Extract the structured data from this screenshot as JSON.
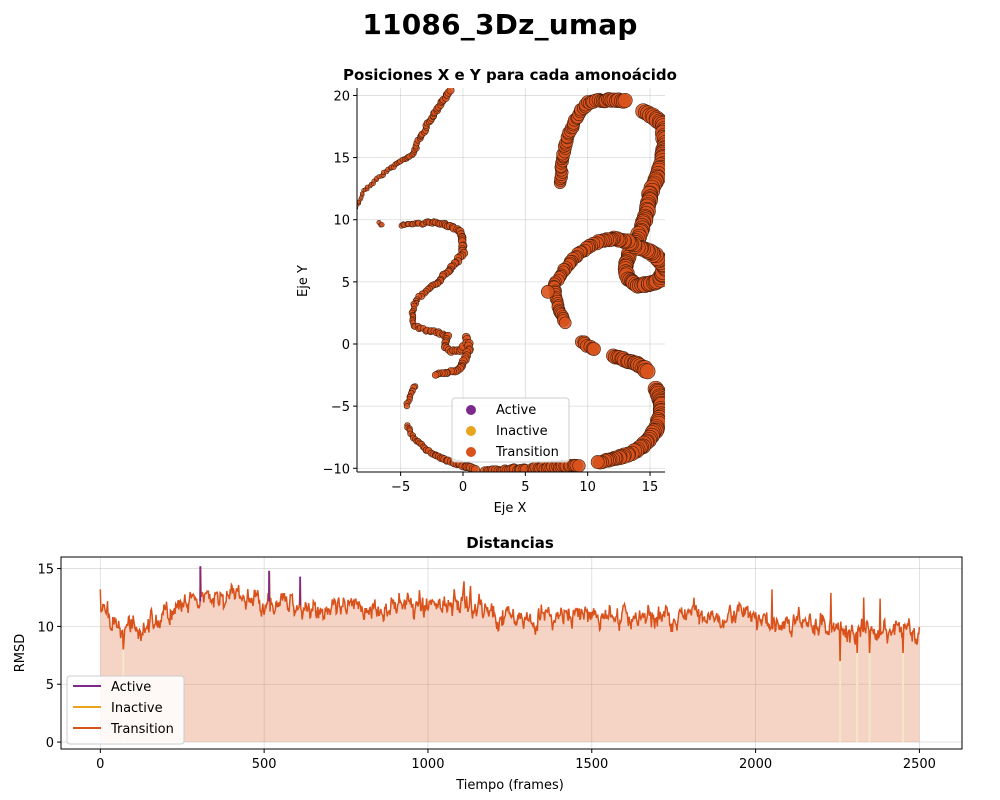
{
  "suptitle": "11086_3Dz_umap",
  "colors": {
    "Active": "#7b2a8b",
    "Inactive": "#e8a51d",
    "Transition": "#d9521b"
  },
  "chart_data": [
    {
      "type": "scatter",
      "title": "Posiciones X e Y para cada amonoácido",
      "xlabel": "Eje X",
      "ylabel": "Eje Y",
      "xlim": [
        -8.5,
        16.2
      ],
      "ylim": [
        -10.3,
        20.6
      ],
      "xticks": [
        -5,
        0,
        5,
        10,
        15
      ],
      "yticks": [
        -10,
        -5,
        0,
        5,
        10,
        15,
        20
      ],
      "grid": true,
      "legend": {
        "placement": "lower-center",
        "entries": [
          "Active",
          "Inactive",
          "Transition"
        ]
      },
      "series": [
        {
          "name": "Active",
          "points": []
        },
        {
          "name": "Inactive",
          "points": []
        },
        {
          "name": "Transition",
          "paths": [
            [
              [
                -8.5,
                11.0
              ],
              [
                -8.0,
                12.3
              ],
              [
                -7.0,
                13.2
              ],
              [
                -6.0,
                14.0
              ],
              [
                -5.0,
                14.7
              ],
              [
                -4.0,
                15.3
              ],
              [
                -3.5,
                16.5
              ],
              [
                -2.8,
                17.7
              ],
              [
                -2.0,
                19.0
              ],
              [
                -1.0,
                20.4
              ]
            ],
            [
              [
                -6.8,
                9.7
              ],
              [
                -6.5,
                9.6
              ]
            ],
            [
              [
                -5.0,
                9.6
              ],
              [
                -3.5,
                9.7
              ],
              [
                -2.5,
                9.8
              ],
              [
                -1.5,
                9.6
              ],
              [
                -0.5,
                9.3
              ],
              [
                0,
                8.5
              ],
              [
                0,
                7.3
              ],
              [
                -1.0,
                6.0
              ],
              [
                -2.0,
                5.0
              ],
              [
                -3.0,
                4.3
              ],
              [
                -3.8,
                3.5
              ],
              [
                -4.1,
                2.5
              ],
              [
                -4.0,
                1.5
              ],
              [
                -3.0,
                1.1
              ],
              [
                -2.0,
                0.9
              ],
              [
                -1.2,
                0.6
              ],
              [
                -1.5,
                -0.3
              ],
              [
                -1.0,
                -0.6
              ],
              [
                -0.3,
                -0.5
              ],
              [
                0,
                -0.2
              ]
            ],
            [
              [
                0.2,
                0.5
              ],
              [
                0.5,
                -0.2
              ],
              [
                0.2,
                -1.3
              ],
              [
                -0.3,
                -2.0
              ],
              [
                -1.2,
                -2.3
              ],
              [
                -2.2,
                -2.5
              ]
            ],
            [
              [
                -3.8,
                -3.4
              ],
              [
                -4.2,
                -4.0
              ],
              [
                -4.5,
                -5.0
              ]
            ],
            [
              [
                -4.5,
                -6.5
              ],
              [
                -4.0,
                -7.5
              ],
              [
                -3.0,
                -8.5
              ],
              [
                -1.5,
                -9.3
              ],
              [
                0,
                -9.8
              ],
              [
                1.0,
                -10.1
              ]
            ],
            [
              [
                1.8,
                -10.2
              ],
              [
                3.0,
                -10.2
              ],
              [
                4.0,
                -10.1
              ],
              [
                5.0,
                -10.1
              ]
            ],
            [
              [
                5.5,
                -10.0
              ],
              [
                6.5,
                -10.0
              ],
              [
                7.5,
                -9.9
              ],
              [
                8.5,
                -9.8
              ],
              [
                9.3,
                -9.8
              ]
            ],
            [
              [
                7.8,
                13.0
              ],
              [
                7.9,
                14.0
              ],
              [
                8.0,
                15.0
              ],
              [
                8.2,
                16.0
              ],
              [
                8.5,
                17.0
              ],
              [
                9.0,
                18.0
              ],
              [
                9.5,
                18.8
              ],
              [
                10.0,
                19.4
              ],
              [
                11.0,
                19.6
              ],
              [
                12.0,
                19.6
              ],
              [
                13.0,
                19.6
              ]
            ],
            [
              [
                14.5,
                18.7
              ],
              [
                15.5,
                18.2
              ],
              [
                16.1,
                17.5
              ],
              [
                16.2,
                16.0
              ],
              [
                16.0,
                14.5
              ],
              [
                15.5,
                13.2
              ],
              [
                15.0,
                12.0
              ],
              [
                14.8,
                10.8
              ],
              [
                14.4,
                9.5
              ],
              [
                14.0,
                8.5
              ],
              [
                13.5,
                7.5
              ],
              [
                13.0,
                6.5
              ],
              [
                13.2,
                5.3
              ],
              [
                14.0,
                4.7
              ],
              [
                15.0,
                4.8
              ],
              [
                15.8,
                5.2
              ],
              [
                16.2,
                6.0
              ],
              [
                15.8,
                6.8
              ],
              [
                15.0,
                7.4
              ],
              [
                14.0,
                7.8
              ],
              [
                13.0,
                8.3
              ],
              [
                12.0,
                8.5
              ],
              [
                11.0,
                8.3
              ],
              [
                10.0,
                7.8
              ],
              [
                9.0,
                7.0
              ],
              [
                8.0,
                5.8
              ],
              [
                7.3,
                4.7
              ],
              [
                7.5,
                3.5
              ],
              [
                7.9,
                2.3
              ],
              [
                8.2,
                1.7
              ]
            ],
            [
              [
                6.8,
                4.2
              ]
            ],
            [
              [
                9.5,
                0.2
              ],
              [
                10.0,
                -0.1
              ],
              [
                10.5,
                -0.4
              ]
            ],
            [
              [
                12.0,
                -1.0
              ],
              [
                13.0,
                -1.3
              ],
              [
                14.0,
                -1.6
              ],
              [
                14.8,
                -2.2
              ]
            ],
            [
              [
                15.5,
                -3.6
              ],
              [
                15.9,
                -4.5
              ],
              [
                15.9,
                -5.7
              ],
              [
                15.5,
                -6.8
              ],
              [
                14.8,
                -7.8
              ],
              [
                14.0,
                -8.5
              ],
              [
                13.0,
                -9.0
              ],
              [
                12.0,
                -9.3
              ],
              [
                10.8,
                -9.5
              ]
            ]
          ]
        }
      ]
    },
    {
      "type": "line",
      "title": "Distancias",
      "xlabel": "Tiempo (frames)",
      "ylabel": "RMSD",
      "xlim": [
        -120,
        2630
      ],
      "ylim": [
        -0.6,
        16.0
      ],
      "xticks": [
        0,
        500,
        1000,
        1500,
        2000,
        2500
      ],
      "yticks": [
        0,
        5,
        10,
        15
      ],
      "grid": true,
      "fill_under": true,
      "legend": {
        "placement": "lower-left",
        "entries": [
          "Active",
          "Inactive",
          "Transition"
        ]
      },
      "n_frames": 2500,
      "trend": [
        [
          0,
          11.5
        ],
        [
          70,
          9.6
        ],
        [
          150,
          10.3
        ],
        [
          250,
          11.6
        ],
        [
          320,
          12.3
        ],
        [
          400,
          12.6
        ],
        [
          500,
          12.2
        ],
        [
          620,
          11.8
        ],
        [
          700,
          11.3
        ],
        [
          800,
          11.6
        ],
        [
          950,
          11.8
        ],
        [
          1100,
          12.1
        ],
        [
          1150,
          11.8
        ],
        [
          1200,
          11.1
        ],
        [
          1300,
          10.7
        ],
        [
          1500,
          10.9
        ],
        [
          1600,
          10.8
        ],
        [
          1800,
          10.9
        ],
        [
          1950,
          11.1
        ],
        [
          2050,
          10.1
        ],
        [
          2150,
          10.3
        ],
        [
          2300,
          9.5
        ],
        [
          2400,
          9.8
        ],
        [
          2500,
          9.6
        ]
      ],
      "noise_amplitude": 0.75,
      "spikes": [
        [
          0,
          13.2
        ],
        [
          305,
          15.2
        ],
        [
          515,
          14.8
        ],
        [
          610,
          14.3
        ],
        [
          1110,
          13.9
        ],
        [
          1130,
          13.5
        ],
        [
          2050,
          13.2
        ],
        [
          2230,
          12.9
        ],
        [
          2330,
          12.5
        ],
        [
          2380,
          12.4
        ]
      ],
      "dips": [
        [
          70,
          8.0
        ],
        [
          2258,
          7.0
        ],
        [
          2310,
          7.7
        ],
        [
          2348,
          7.7
        ],
        [
          2450,
          7.7
        ]
      ],
      "active_spikes": [
        [
          305,
          15.2
        ],
        [
          515,
          14.8
        ],
        [
          610,
          14.3
        ]
      ]
    }
  ]
}
